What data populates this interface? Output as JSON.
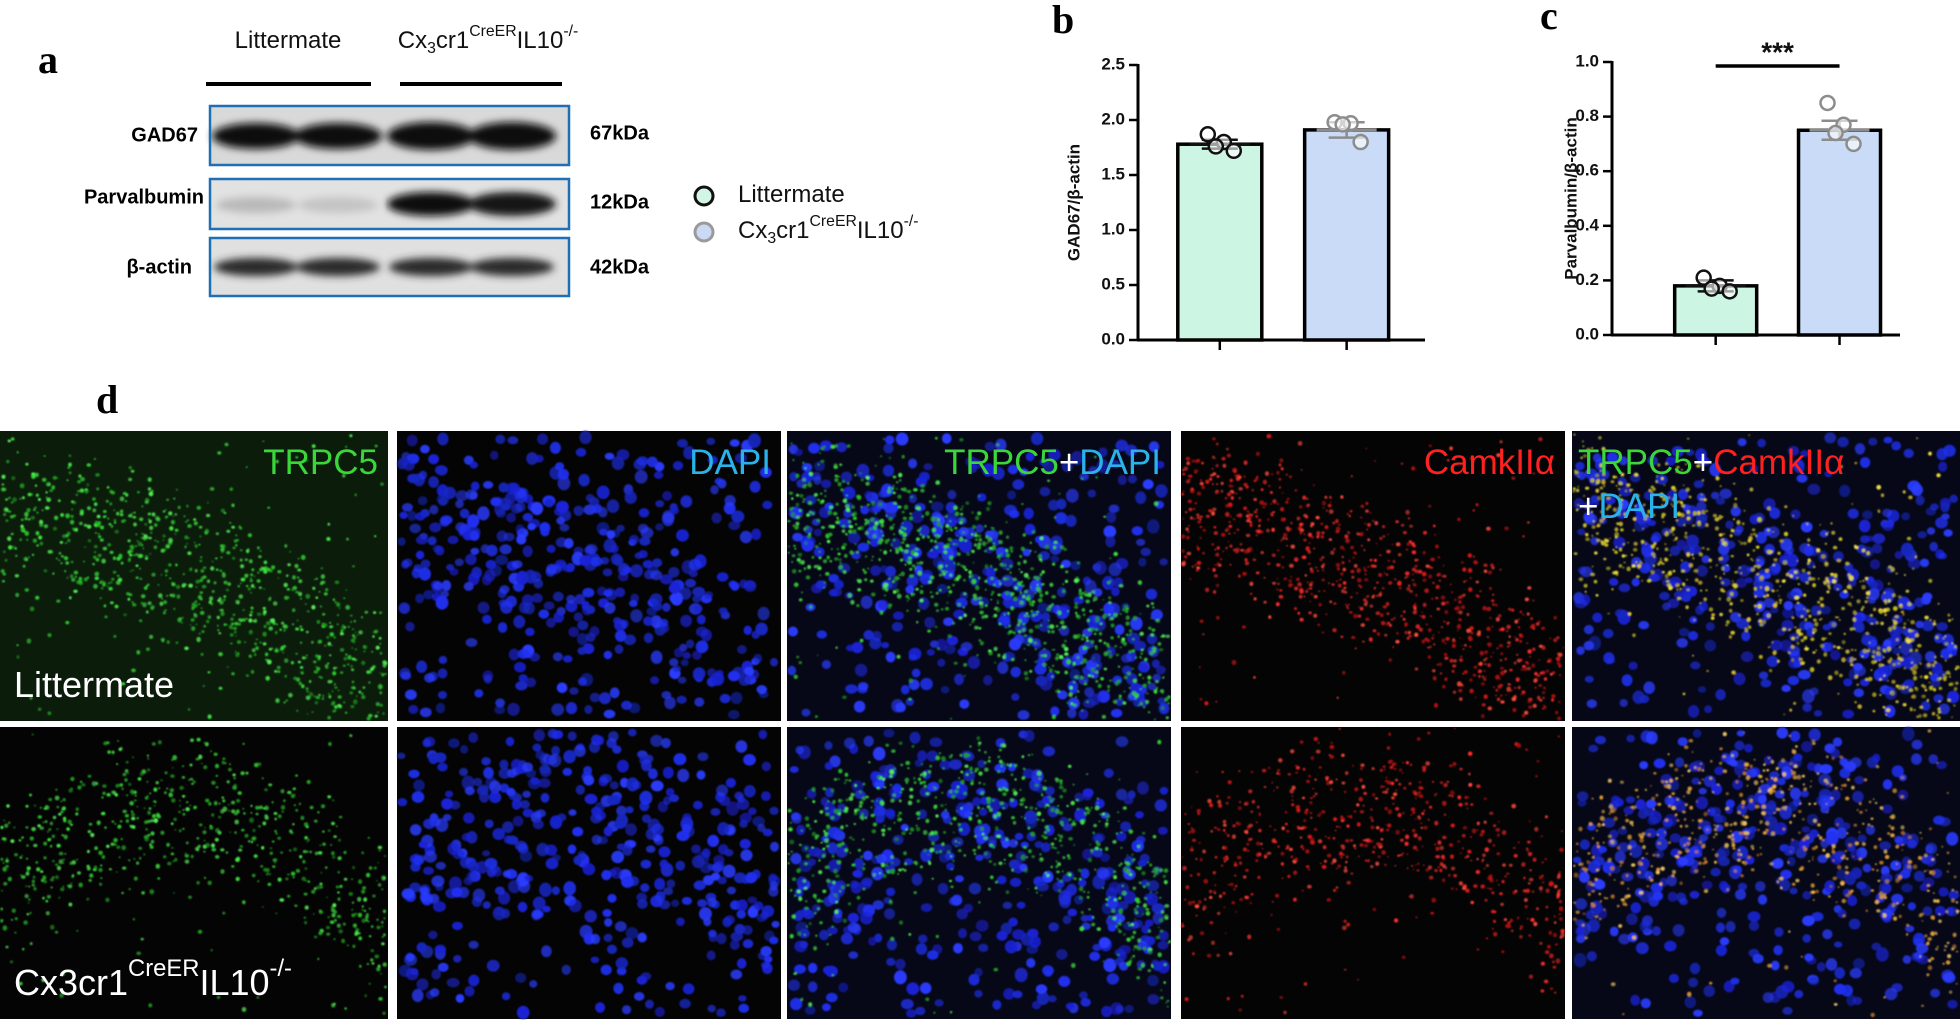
{
  "figure": {
    "panel_labels": [
      "a",
      "b",
      "c",
      "d"
    ],
    "blot": {
      "groups": [
        [
          {
            "text": "Littermate"
          }
        ],
        [
          {
            "text": "Cx"
          },
          {
            "text": "3",
            "pos": "sub"
          },
          {
            "text": "cr1"
          },
          {
            "text": "CreER",
            "pos": "sup"
          },
          {
            "text": "IL10"
          },
          {
            "text": "-/-",
            "pos": "sup"
          }
        ]
      ],
      "rows": [
        {
          "protein": "GAD67",
          "size": "67kDa"
        },
        {
          "protein": "Parvalbumin",
          "size": "12kDa"
        },
        {
          "protein": "β-actin",
          "size": "42kDa"
        }
      ]
    },
    "legend": [
      {
        "parts": [
          {
            "text": "Littermate"
          }
        ],
        "fill": "#d2f5e6",
        "stroke": "#111111"
      },
      {
        "parts": [
          {
            "text": "Cx"
          },
          {
            "text": "3",
            "pos": "sub"
          },
          {
            "text": "cr1"
          },
          {
            "text": "CreER",
            "pos": "sup"
          },
          {
            "text": "IL10"
          },
          {
            "text": "-/-",
            "pos": "sup"
          }
        ],
        "fill": "#cbd9f5",
        "stroke": "#9a9a9a"
      }
    ],
    "images": {
      "channels": [
        [
          [
            {
              "text": "TRPC5",
              "color": "#3ad63a"
            }
          ]
        ],
        [
          [
            {
              "text": "DAPI",
              "color": "#2ab3ea"
            }
          ]
        ],
        [
          [
            {
              "text": "TRPC5",
              "color": "#3ad63a"
            },
            {
              "text": "+",
              "color": "#ffffff"
            },
            {
              "text": "DAPI",
              "color": "#2ab3ea"
            }
          ]
        ],
        [
          [
            {
              "text": "CamkIIα",
              "color": "#ff2020"
            }
          ]
        ],
        [
          [
            {
              "text": "TRPC5",
              "color": "#3ad63a"
            },
            {
              "text": "+",
              "color": "#ffffff"
            },
            {
              "text": "CamkIIα",
              "color": "#ff2020"
            }
          ],
          [
            {
              "text": "+",
              "color": "#ffffff"
            },
            {
              "text": "DAPI",
              "color": "#2ab3ea"
            }
          ]
        ]
      ],
      "rows": [
        [
          {
            "text": "Littermate"
          }
        ],
        [
          {
            "text": "Cx3cr1"
          },
          {
            "text": "CreER",
            "pos": "sup"
          },
          {
            "text": "IL10"
          },
          {
            "text": "-/-",
            "pos": "sup"
          }
        ]
      ]
    }
  },
  "chart_data": [
    {
      "type": "bar",
      "y_label": "GAD67/β-actin",
      "categories": [
        null,
        null
      ],
      "values": [
        1.78,
        1.91
      ],
      "errors": [
        0.04,
        0.07
      ],
      "points": [
        [
          1.87,
          1.8,
          1.76,
          1.72
        ],
        [
          1.98,
          1.97,
          1.96,
          1.8
        ]
      ],
      "colors": [
        "#cdf5e4",
        "#c9dbf6"
      ],
      "point_colors": [
        "#111111",
        "#8c8c8c"
      ],
      "ylim": [
        0,
        2.5
      ],
      "yticks": [
        {
          "value": 0,
          "label": "0.0"
        },
        {
          "value": 0.5,
          "label": "0.5"
        },
        {
          "value": 1,
          "label": "1.0"
        },
        {
          "value": 1.5,
          "label": "1.5"
        },
        {
          "value": 2,
          "label": "2.0"
        },
        {
          "value": 2.5,
          "label": "2.5"
        }
      ]
    },
    {
      "type": "bar",
      "y_label": "Parvalbumin/β-actin",
      "categories": [
        null,
        null
      ],
      "values": [
        0.18,
        0.75
      ],
      "errors": [
        0.02,
        0.035
      ],
      "points": [
        [
          0.21,
          0.18,
          0.17,
          0.16
        ],
        [
          0.85,
          0.77,
          0.74,
          0.7
        ]
      ],
      "colors": [
        "#cdf5e4",
        "#c9dbf6"
      ],
      "point_colors": [
        "#111111",
        "#8c8c8c"
      ],
      "annotation": "***",
      "ylim": [
        0,
        1
      ],
      "yticks": [
        {
          "value": 0,
          "label": "0.0"
        },
        {
          "value": 0.2,
          "label": "0.2"
        },
        {
          "value": 0.4,
          "label": "0.4"
        },
        {
          "value": 0.6,
          "label": "0.6"
        },
        {
          "value": 0.8,
          "label": "0.8"
        },
        {
          "value": 1,
          "label": "1.0"
        }
      ]
    }
  ]
}
